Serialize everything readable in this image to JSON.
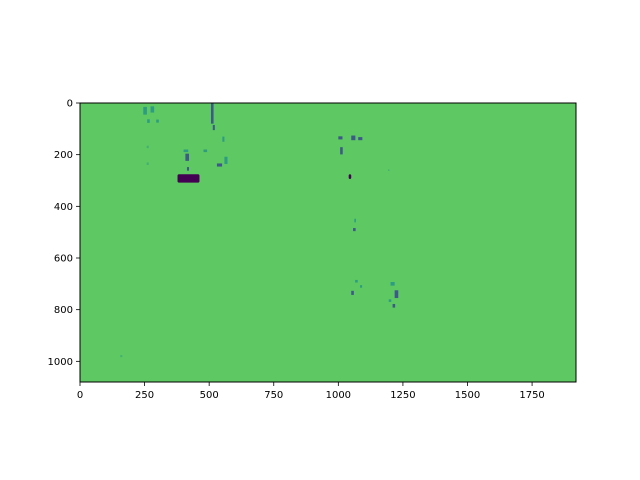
{
  "chart_data": {
    "type": "heatmap",
    "title": "",
    "xlabel": "",
    "ylabel": "",
    "xlim": [
      0,
      1920
    ],
    "ylim": [
      1080,
      0
    ],
    "image_size": [
      1920,
      1080
    ],
    "x_ticks": [
      0,
      250,
      500,
      750,
      1000,
      1250,
      1500,
      1750
    ],
    "y_ticks": [
      0,
      200,
      400,
      600,
      800,
      1000
    ],
    "grid": false,
    "legend": "none",
    "colormap": "viridis",
    "colors": {
      "background": "#5ec962",
      "speck_teal": "#21918c",
      "speck_blue": "#3b528b",
      "speck_dark": "#440154",
      "frame": "#000000"
    },
    "features": [
      {
        "x": 420,
        "y": 292,
        "w": 85,
        "h": 32,
        "level": "low"
      },
      {
        "x": 415,
        "y": 210,
        "w": 14,
        "h": 28,
        "level": "mid-low"
      },
      {
        "x": 418,
        "y": 255,
        "w": 8,
        "h": 14,
        "level": "mid-low"
      },
      {
        "x": 410,
        "y": 185,
        "w": 18,
        "h": 10,
        "level": "mid"
      },
      {
        "x": 512,
        "y": 40,
        "w": 10,
        "h": 80,
        "level": "mid-low"
      },
      {
        "x": 518,
        "y": 95,
        "w": 8,
        "h": 20,
        "level": "mid-low"
      },
      {
        "x": 540,
        "y": 240,
        "w": 20,
        "h": 12,
        "level": "mid-low"
      },
      {
        "x": 565,
        "y": 222,
        "w": 12,
        "h": 28,
        "level": "mid"
      },
      {
        "x": 555,
        "y": 140,
        "w": 8,
        "h": 20,
        "level": "mid"
      },
      {
        "x": 485,
        "y": 185,
        "w": 14,
        "h": 10,
        "level": "mid"
      },
      {
        "x": 252,
        "y": 30,
        "w": 14,
        "h": 30,
        "level": "mid"
      },
      {
        "x": 280,
        "y": 25,
        "w": 14,
        "h": 24,
        "level": "mid"
      },
      {
        "x": 265,
        "y": 70,
        "w": 10,
        "h": 14,
        "level": "mid"
      },
      {
        "x": 300,
        "y": 70,
        "w": 10,
        "h": 12,
        "level": "mid"
      },
      {
        "x": 262,
        "y": 170,
        "w": 8,
        "h": 10,
        "level": "high"
      },
      {
        "x": 262,
        "y": 235,
        "w": 8,
        "h": 10,
        "level": "high"
      },
      {
        "x": 1008,
        "y": 135,
        "w": 16,
        "h": 12,
        "level": "mid-low"
      },
      {
        "x": 1012,
        "y": 185,
        "w": 10,
        "h": 28,
        "level": "mid-low"
      },
      {
        "x": 1058,
        "y": 135,
        "w": 16,
        "h": 18,
        "level": "mid-low"
      },
      {
        "x": 1085,
        "y": 138,
        "w": 16,
        "h": 12,
        "level": "mid-low"
      },
      {
        "x": 1045,
        "y": 285,
        "w": 10,
        "h": 18,
        "level": "low"
      },
      {
        "x": 1062,
        "y": 490,
        "w": 10,
        "h": 12,
        "level": "mid-low"
      },
      {
        "x": 1065,
        "y": 455,
        "w": 6,
        "h": 14,
        "level": "mid"
      },
      {
        "x": 1055,
        "y": 735,
        "w": 10,
        "h": 16,
        "level": "mid-low"
      },
      {
        "x": 1070,
        "y": 690,
        "w": 10,
        "h": 10,
        "level": "mid"
      },
      {
        "x": 1088,
        "y": 710,
        "w": 8,
        "h": 10,
        "level": "mid"
      },
      {
        "x": 1210,
        "y": 700,
        "w": 16,
        "h": 14,
        "level": "mid"
      },
      {
        "x": 1225,
        "y": 740,
        "w": 14,
        "h": 30,
        "level": "mid-low"
      },
      {
        "x": 1215,
        "y": 785,
        "w": 10,
        "h": 14,
        "level": "mid-low"
      },
      {
        "x": 1200,
        "y": 765,
        "w": 10,
        "h": 10,
        "level": "mid"
      },
      {
        "x": 1195,
        "y": 260,
        "w": 6,
        "h": 6,
        "level": "high"
      },
      {
        "x": 160,
        "y": 980,
        "w": 8,
        "h": 8,
        "level": "high"
      }
    ]
  }
}
